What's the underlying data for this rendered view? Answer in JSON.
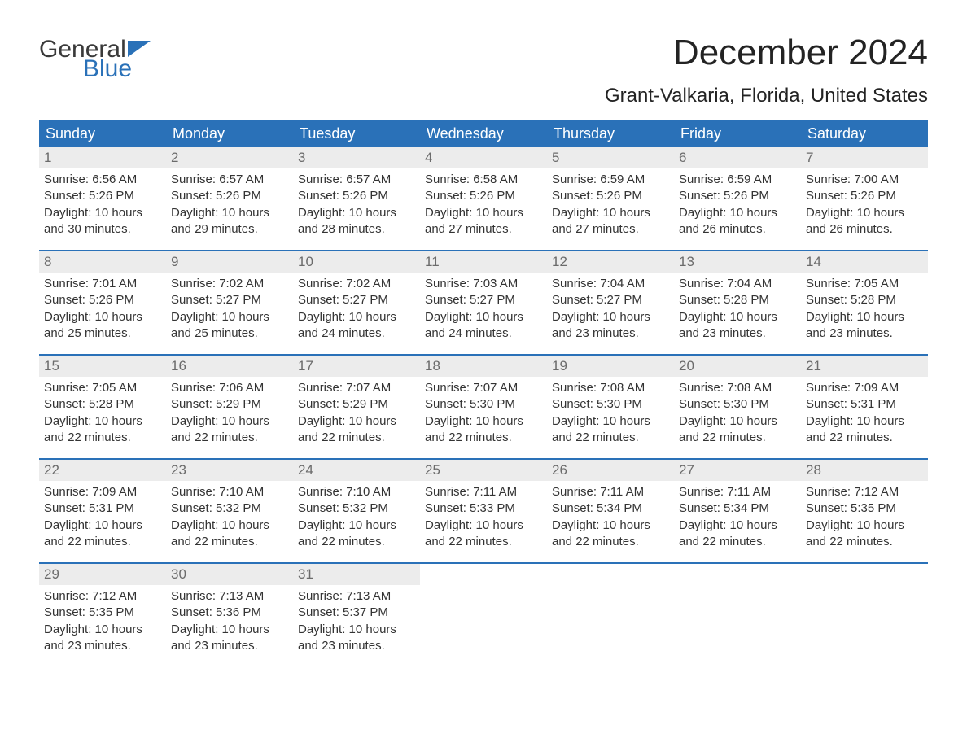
{
  "logo": {
    "word1": "General",
    "word2": "Blue"
  },
  "title": "December 2024",
  "subtitle": "Grant-Valkaria, Florida, United States",
  "colors": {
    "header_bg": "#2a71b8",
    "header_text": "#ffffff",
    "daynum_bg": "#ececec",
    "daynum_text": "#6b6b6b",
    "body_text": "#333333",
    "divider": "#2a71b8",
    "page_bg": "#ffffff",
    "logo_gray": "#3a3a3a",
    "logo_blue": "#2a71b8"
  },
  "typography": {
    "title_fontsize": 44,
    "subtitle_fontsize": 24,
    "dow_fontsize": 18,
    "daynum_fontsize": 17,
    "body_fontsize": 15,
    "font_family": "Arial"
  },
  "days_of_week": [
    "Sunday",
    "Monday",
    "Tuesday",
    "Wednesday",
    "Thursday",
    "Friday",
    "Saturday"
  ],
  "weeks": [
    [
      {
        "n": "1",
        "sunrise": "Sunrise: 6:56 AM",
        "sunset": "Sunset: 5:26 PM",
        "d1": "Daylight: 10 hours",
        "d2": "and 30 minutes."
      },
      {
        "n": "2",
        "sunrise": "Sunrise: 6:57 AM",
        "sunset": "Sunset: 5:26 PM",
        "d1": "Daylight: 10 hours",
        "d2": "and 29 minutes."
      },
      {
        "n": "3",
        "sunrise": "Sunrise: 6:57 AM",
        "sunset": "Sunset: 5:26 PM",
        "d1": "Daylight: 10 hours",
        "d2": "and 28 minutes."
      },
      {
        "n": "4",
        "sunrise": "Sunrise: 6:58 AM",
        "sunset": "Sunset: 5:26 PM",
        "d1": "Daylight: 10 hours",
        "d2": "and 27 minutes."
      },
      {
        "n": "5",
        "sunrise": "Sunrise: 6:59 AM",
        "sunset": "Sunset: 5:26 PM",
        "d1": "Daylight: 10 hours",
        "d2": "and 27 minutes."
      },
      {
        "n": "6",
        "sunrise": "Sunrise: 6:59 AM",
        "sunset": "Sunset: 5:26 PM",
        "d1": "Daylight: 10 hours",
        "d2": "and 26 minutes."
      },
      {
        "n": "7",
        "sunrise": "Sunrise: 7:00 AM",
        "sunset": "Sunset: 5:26 PM",
        "d1": "Daylight: 10 hours",
        "d2": "and 26 minutes."
      }
    ],
    [
      {
        "n": "8",
        "sunrise": "Sunrise: 7:01 AM",
        "sunset": "Sunset: 5:26 PM",
        "d1": "Daylight: 10 hours",
        "d2": "and 25 minutes."
      },
      {
        "n": "9",
        "sunrise": "Sunrise: 7:02 AM",
        "sunset": "Sunset: 5:27 PM",
        "d1": "Daylight: 10 hours",
        "d2": "and 25 minutes."
      },
      {
        "n": "10",
        "sunrise": "Sunrise: 7:02 AM",
        "sunset": "Sunset: 5:27 PM",
        "d1": "Daylight: 10 hours",
        "d2": "and 24 minutes."
      },
      {
        "n": "11",
        "sunrise": "Sunrise: 7:03 AM",
        "sunset": "Sunset: 5:27 PM",
        "d1": "Daylight: 10 hours",
        "d2": "and 24 minutes."
      },
      {
        "n": "12",
        "sunrise": "Sunrise: 7:04 AM",
        "sunset": "Sunset: 5:27 PM",
        "d1": "Daylight: 10 hours",
        "d2": "and 23 minutes."
      },
      {
        "n": "13",
        "sunrise": "Sunrise: 7:04 AM",
        "sunset": "Sunset: 5:28 PM",
        "d1": "Daylight: 10 hours",
        "d2": "and 23 minutes."
      },
      {
        "n": "14",
        "sunrise": "Sunrise: 7:05 AM",
        "sunset": "Sunset: 5:28 PM",
        "d1": "Daylight: 10 hours",
        "d2": "and 23 minutes."
      }
    ],
    [
      {
        "n": "15",
        "sunrise": "Sunrise: 7:05 AM",
        "sunset": "Sunset: 5:28 PM",
        "d1": "Daylight: 10 hours",
        "d2": "and 22 minutes."
      },
      {
        "n": "16",
        "sunrise": "Sunrise: 7:06 AM",
        "sunset": "Sunset: 5:29 PM",
        "d1": "Daylight: 10 hours",
        "d2": "and 22 minutes."
      },
      {
        "n": "17",
        "sunrise": "Sunrise: 7:07 AM",
        "sunset": "Sunset: 5:29 PM",
        "d1": "Daylight: 10 hours",
        "d2": "and 22 minutes."
      },
      {
        "n": "18",
        "sunrise": "Sunrise: 7:07 AM",
        "sunset": "Sunset: 5:30 PM",
        "d1": "Daylight: 10 hours",
        "d2": "and 22 minutes."
      },
      {
        "n": "19",
        "sunrise": "Sunrise: 7:08 AM",
        "sunset": "Sunset: 5:30 PM",
        "d1": "Daylight: 10 hours",
        "d2": "and 22 minutes."
      },
      {
        "n": "20",
        "sunrise": "Sunrise: 7:08 AM",
        "sunset": "Sunset: 5:30 PM",
        "d1": "Daylight: 10 hours",
        "d2": "and 22 minutes."
      },
      {
        "n": "21",
        "sunrise": "Sunrise: 7:09 AM",
        "sunset": "Sunset: 5:31 PM",
        "d1": "Daylight: 10 hours",
        "d2": "and 22 minutes."
      }
    ],
    [
      {
        "n": "22",
        "sunrise": "Sunrise: 7:09 AM",
        "sunset": "Sunset: 5:31 PM",
        "d1": "Daylight: 10 hours",
        "d2": "and 22 minutes."
      },
      {
        "n": "23",
        "sunrise": "Sunrise: 7:10 AM",
        "sunset": "Sunset: 5:32 PM",
        "d1": "Daylight: 10 hours",
        "d2": "and 22 minutes."
      },
      {
        "n": "24",
        "sunrise": "Sunrise: 7:10 AM",
        "sunset": "Sunset: 5:32 PM",
        "d1": "Daylight: 10 hours",
        "d2": "and 22 minutes."
      },
      {
        "n": "25",
        "sunrise": "Sunrise: 7:11 AM",
        "sunset": "Sunset: 5:33 PM",
        "d1": "Daylight: 10 hours",
        "d2": "and 22 minutes."
      },
      {
        "n": "26",
        "sunrise": "Sunrise: 7:11 AM",
        "sunset": "Sunset: 5:34 PM",
        "d1": "Daylight: 10 hours",
        "d2": "and 22 minutes."
      },
      {
        "n": "27",
        "sunrise": "Sunrise: 7:11 AM",
        "sunset": "Sunset: 5:34 PM",
        "d1": "Daylight: 10 hours",
        "d2": "and 22 minutes."
      },
      {
        "n": "28",
        "sunrise": "Sunrise: 7:12 AM",
        "sunset": "Sunset: 5:35 PM",
        "d1": "Daylight: 10 hours",
        "d2": "and 22 minutes."
      }
    ],
    [
      {
        "n": "29",
        "sunrise": "Sunrise: 7:12 AM",
        "sunset": "Sunset: 5:35 PM",
        "d1": "Daylight: 10 hours",
        "d2": "and 23 minutes."
      },
      {
        "n": "30",
        "sunrise": "Sunrise: 7:13 AM",
        "sunset": "Sunset: 5:36 PM",
        "d1": "Daylight: 10 hours",
        "d2": "and 23 minutes."
      },
      {
        "n": "31",
        "sunrise": "Sunrise: 7:13 AM",
        "sunset": "Sunset: 5:37 PM",
        "d1": "Daylight: 10 hours",
        "d2": "and 23 minutes."
      },
      null,
      null,
      null,
      null
    ]
  ]
}
